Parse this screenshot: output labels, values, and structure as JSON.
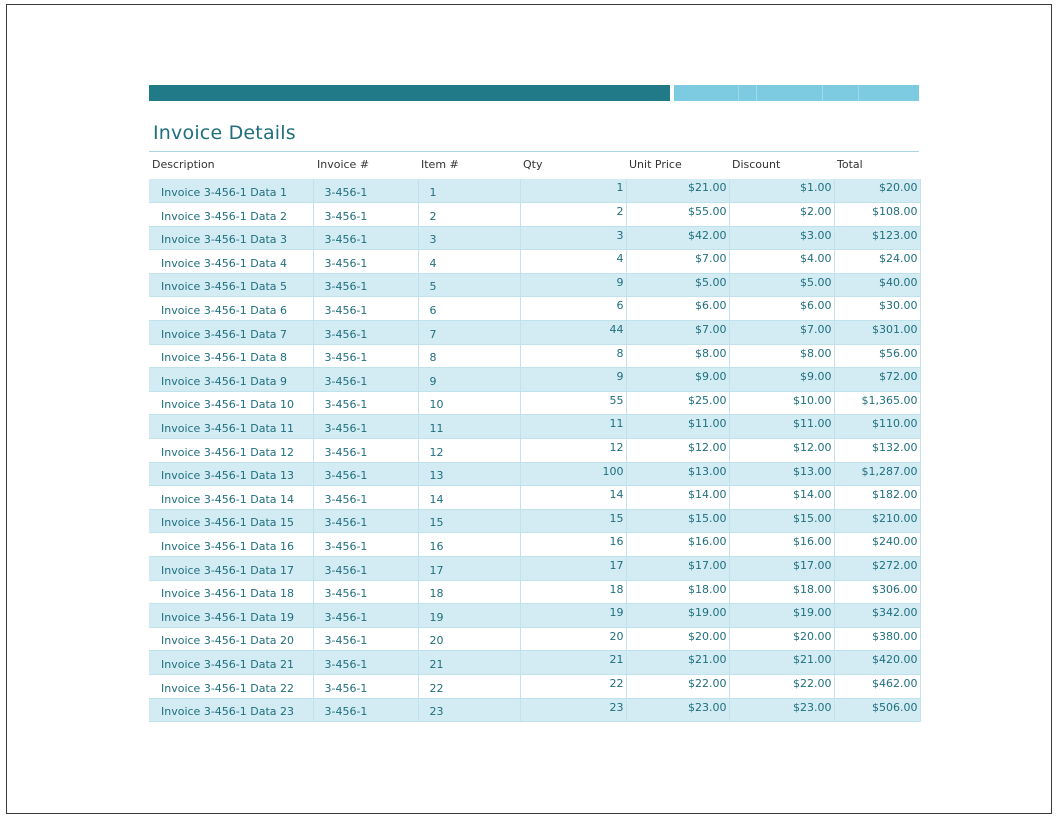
{
  "document": {
    "title": "Invoice Details"
  },
  "table": {
    "headers": [
      "Description",
      "Invoice #",
      "Item #",
      "Qty",
      "Unit Price",
      "Discount",
      "Total"
    ],
    "rows": [
      [
        "Invoice 3-456-1 Data 1",
        "3-456-1",
        "1",
        "1",
        "$21.00",
        "$1.00",
        "$20.00"
      ],
      [
        "Invoice 3-456-1 Data 2",
        "3-456-1",
        "2",
        "2",
        "$55.00",
        "$2.00",
        "$108.00"
      ],
      [
        "Invoice 3-456-1 Data 3",
        "3-456-1",
        "3",
        "3",
        "$42.00",
        "$3.00",
        "$123.00"
      ],
      [
        "Invoice 3-456-1 Data 4",
        "3-456-1",
        "4",
        "4",
        "$7.00",
        "$4.00",
        "$24.00"
      ],
      [
        "Invoice 3-456-1 Data 5",
        "3-456-1",
        "5",
        "9",
        "$5.00",
        "$5.00",
        "$40.00"
      ],
      [
        "Invoice 3-456-1 Data 6",
        "3-456-1",
        "6",
        "6",
        "$6.00",
        "$6.00",
        "$30.00"
      ],
      [
        "Invoice 3-456-1 Data 7",
        "3-456-1",
        "7",
        "44",
        "$7.00",
        "$7.00",
        "$301.00"
      ],
      [
        "Invoice 3-456-1 Data 8",
        "3-456-1",
        "8",
        "8",
        "$8.00",
        "$8.00",
        "$56.00"
      ],
      [
        "Invoice 3-456-1 Data 9",
        "3-456-1",
        "9",
        "9",
        "$9.00",
        "$9.00",
        "$72.00"
      ],
      [
        "Invoice 3-456-1 Data 10",
        "3-456-1",
        "10",
        "55",
        "$25.00",
        "$10.00",
        "$1,365.00"
      ],
      [
        "Invoice 3-456-1 Data 11",
        "3-456-1",
        "11",
        "11",
        "$11.00",
        "$11.00",
        "$110.00"
      ],
      [
        "Invoice 3-456-1 Data 12",
        "3-456-1",
        "12",
        "12",
        "$12.00",
        "$12.00",
        "$132.00"
      ],
      [
        "Invoice 3-456-1 Data 13",
        "3-456-1",
        "13",
        "100",
        "$13.00",
        "$13.00",
        "$1,287.00"
      ],
      [
        "Invoice 3-456-1 Data 14",
        "3-456-1",
        "14",
        "14",
        "$14.00",
        "$14.00",
        "$182.00"
      ],
      [
        "Invoice 3-456-1 Data 15",
        "3-456-1",
        "15",
        "15",
        "$15.00",
        "$15.00",
        "$210.00"
      ],
      [
        "Invoice 3-456-1 Data 16",
        "3-456-1",
        "16",
        "16",
        "$16.00",
        "$16.00",
        "$240.00"
      ],
      [
        "Invoice 3-456-1 Data 17",
        "3-456-1",
        "17",
        "17",
        "$17.00",
        "$17.00",
        "$272.00"
      ],
      [
        "Invoice 3-456-1 Data 18",
        "3-456-1",
        "18",
        "18",
        "$18.00",
        "$18.00",
        "$306.00"
      ],
      [
        "Invoice 3-456-1 Data 19",
        "3-456-1",
        "19",
        "19",
        "$19.00",
        "$19.00",
        "$342.00"
      ],
      [
        "Invoice 3-456-1 Data 20",
        "3-456-1",
        "20",
        "20",
        "$20.00",
        "$20.00",
        "$380.00"
      ],
      [
        "Invoice 3-456-1 Data 21",
        "3-456-1",
        "21",
        "21",
        "$21.00",
        "$21.00",
        "$420.00"
      ],
      [
        "Invoice 3-456-1 Data 22",
        "3-456-1",
        "22",
        "22",
        "$22.00",
        "$22.00",
        "$462.00"
      ],
      [
        "Invoice 3-456-1 Data 23",
        "3-456-1",
        "23",
        "23",
        "$23.00",
        "$23.00",
        "$506.00"
      ]
    ]
  },
  "colors": {
    "accent_dark": "#217a88",
    "accent_light": "#7ccbe0",
    "row_band": "#d3ecf3",
    "text": "#1f6f7e"
  }
}
